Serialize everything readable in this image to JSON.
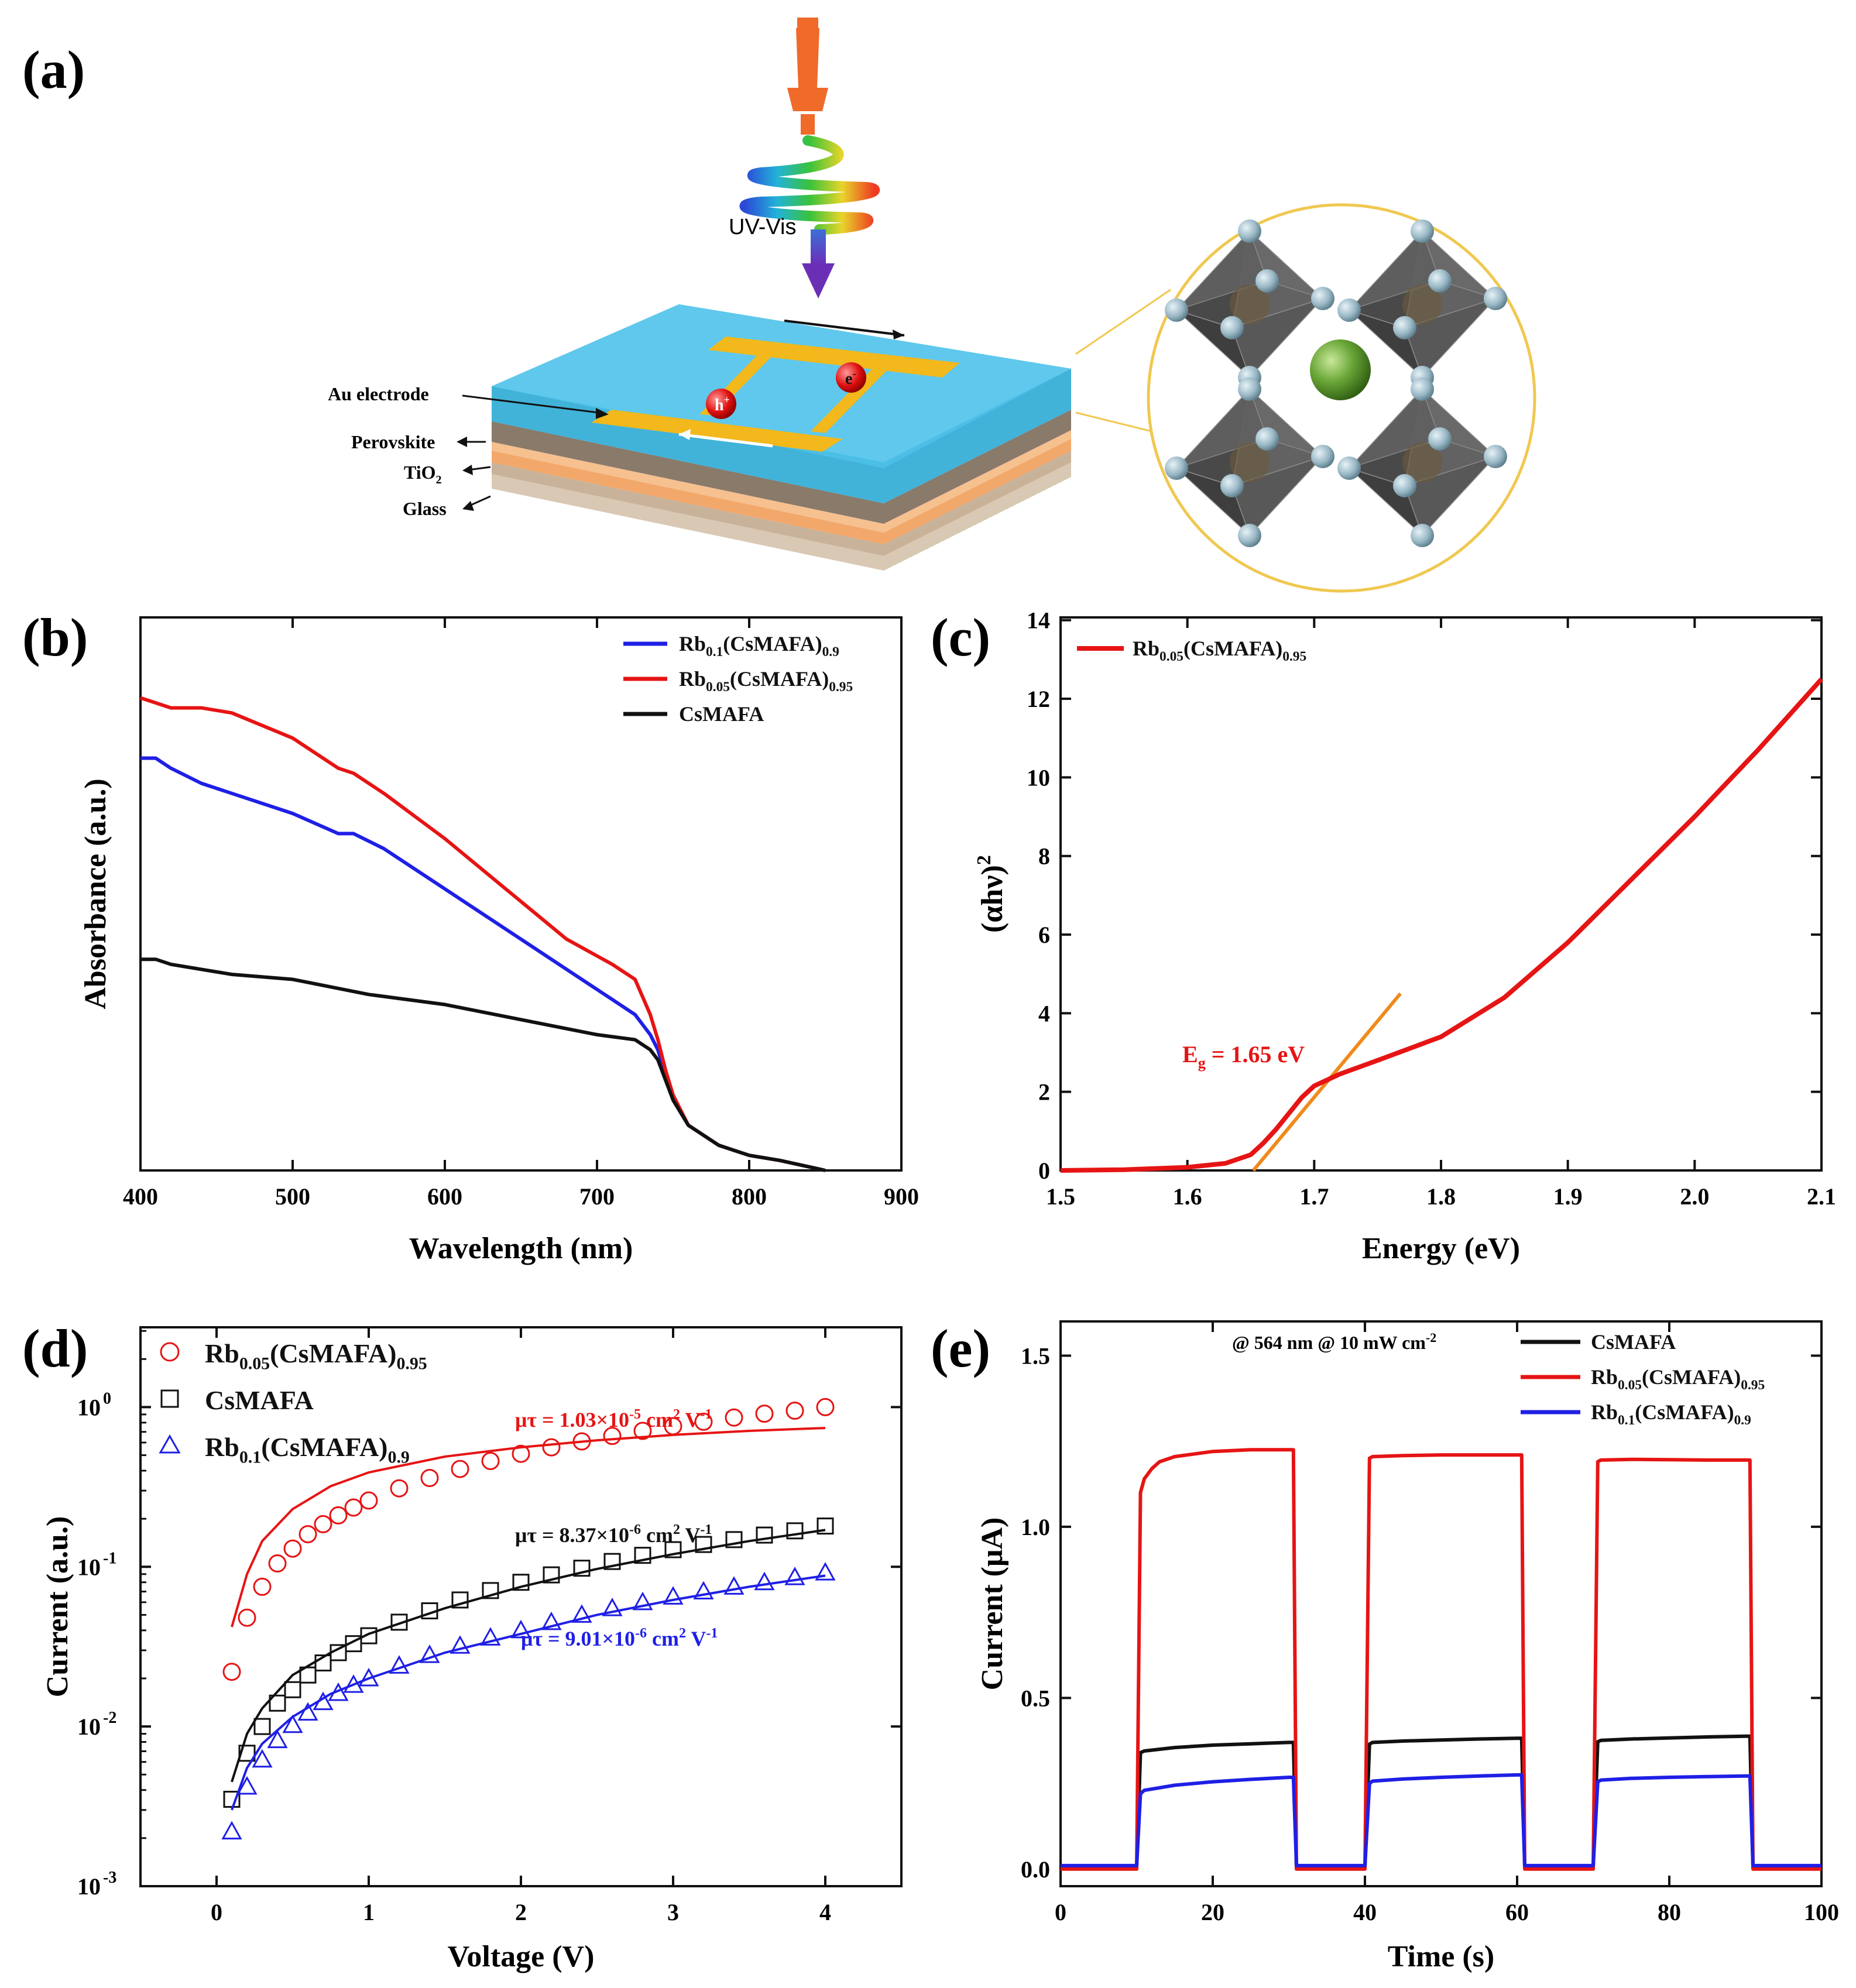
{
  "panel_a": {
    "label": "(a)",
    "uv_label": "UV-Vis",
    "layer_labels": [
      "Au electrode",
      "Perovskite",
      "TiO",
      "Glass"
    ],
    "tio2_sub": "2",
    "hole_label": "h",
    "hole_sup": "+",
    "electron_label": "e",
    "electron_sup": "-",
    "colors": {
      "perovskite": "#4bbfe6",
      "electrode": "#f2b81c",
      "lamp": "#f06a2a",
      "tio2": "#f2a86a",
      "glass": "#d9c8b4",
      "cation": "#6aa637",
      "anion": "#9ab8c6",
      "octahedron": "#4a4a4a"
    }
  },
  "chart_data": [
    {
      "panel": "(b)",
      "type": "line",
      "xlabel": "Wavelength (nm)",
      "ylabel": "Absorbance (a.u.)",
      "xlim": [
        400,
        900
      ],
      "ylim": [
        0,
        1.1
      ],
      "xticks": [
        400,
        500,
        600,
        700,
        800,
        900
      ],
      "yticks": [],
      "legend_position": "top-right",
      "series": [
        {
          "name": "Rb",
          "sub": "0.1",
          "suffix": "(CsMAFA)",
          "sub2": "0.9",
          "color": "#1f1fe6",
          "x": [
            400,
            410,
            420,
            440,
            460,
            500,
            530,
            540,
            560,
            600,
            640,
            680,
            710,
            725,
            735,
            740,
            745,
            750,
            760,
            780,
            800,
            820,
            850
          ],
          "y": [
            0.82,
            0.82,
            0.8,
            0.77,
            0.75,
            0.71,
            0.67,
            0.67,
            0.64,
            0.56,
            0.48,
            0.4,
            0.34,
            0.31,
            0.27,
            0.24,
            0.19,
            0.14,
            0.09,
            0.05,
            0.03,
            0.02,
            0.0
          ]
        },
        {
          "name": "Rb",
          "sub": "0.05",
          "suffix": "(CsMAFA)",
          "sub2": "0.95",
          "color": "#e61414",
          "x": [
            400,
            410,
            420,
            440,
            460,
            500,
            530,
            540,
            560,
            600,
            640,
            680,
            710,
            725,
            735,
            740,
            745,
            750,
            760,
            780,
            800,
            820,
            850
          ],
          "y": [
            0.94,
            0.93,
            0.92,
            0.92,
            0.91,
            0.86,
            0.8,
            0.79,
            0.75,
            0.66,
            0.56,
            0.46,
            0.41,
            0.38,
            0.31,
            0.26,
            0.2,
            0.15,
            0.09,
            0.05,
            0.03,
            0.02,
            0.0
          ]
        },
        {
          "name": "CsMAFA",
          "sub": "",
          "suffix": "",
          "sub2": "",
          "color": "#111111",
          "x": [
            400,
            410,
            420,
            440,
            460,
            500,
            550,
            600,
            650,
            700,
            725,
            735,
            740,
            745,
            750,
            760,
            780,
            800,
            820,
            850
          ],
          "y": [
            0.42,
            0.42,
            0.41,
            0.4,
            0.39,
            0.38,
            0.35,
            0.33,
            0.3,
            0.27,
            0.26,
            0.24,
            0.22,
            0.18,
            0.14,
            0.09,
            0.05,
            0.03,
            0.02,
            0.0
          ]
        }
      ]
    },
    {
      "panel": "(c)",
      "type": "line",
      "xlabel": "Energy (eV)",
      "ylabel_main": "(αhν)",
      "ylabel_sup": "2",
      "xlim": [
        1.5,
        2.1
      ],
      "ylim": [
        0,
        14
      ],
      "xticks": [
        1.5,
        1.6,
        1.7,
        1.8,
        1.9,
        2.0,
        2.1
      ],
      "yticks": [
        0,
        2,
        4,
        6,
        8,
        10,
        12,
        14
      ],
      "legend_position": "top-left",
      "annotation": {
        "main": "E",
        "sub": "g",
        "rest": " = 1.65 eV"
      },
      "fit_line": {
        "x": [
          1.652,
          1.768
        ],
        "y": [
          0,
          4.5
        ],
        "color": "#f08a1c"
      },
      "series": [
        {
          "name": "Rb",
          "sub": "0.05",
          "suffix": "(CsMAFA)",
          "sub2": "0.95",
          "color": "#e61414",
          "x": [
            1.5,
            1.55,
            1.6,
            1.63,
            1.65,
            1.66,
            1.67,
            1.68,
            1.69,
            1.7,
            1.72,
            1.75,
            1.8,
            1.85,
            1.9,
            1.95,
            2.0,
            2.05,
            2.1
          ],
          "y": [
            0.0,
            0.02,
            0.08,
            0.18,
            0.4,
            0.7,
            1.05,
            1.45,
            1.85,
            2.15,
            2.45,
            2.8,
            3.4,
            4.4,
            5.8,
            7.4,
            9.0,
            10.7,
            12.5
          ]
        }
      ]
    },
    {
      "panel": "(d)",
      "type": "scatter",
      "xlabel": "Voltage (V)",
      "ylabel": "Current (a.u.)",
      "xlim": [
        -0.5,
        4.5
      ],
      "ylim_log10": [
        -3,
        0.5
      ],
      "xticks": [
        0,
        1,
        2,
        3,
        4
      ],
      "yticks": [
        {
          "base": "10",
          "exp": "-3"
        },
        {
          "base": "10",
          "exp": "-2"
        },
        {
          "base": "10",
          "exp": "-1"
        },
        {
          "base": "10",
          "exp": "0"
        }
      ],
      "legend_position": "top-left",
      "series": [
        {
          "name": "Rb",
          "sub": "0.05",
          "suffix": "(CsMAFA)",
          "sub2": "0.95",
          "color": "#e61414",
          "marker": "circle",
          "x": [
            0.1,
            0.2,
            0.3,
            0.4,
            0.5,
            0.6,
            0.7,
            0.8,
            0.9,
            1.0,
            1.2,
            1.4,
            1.6,
            1.8,
            2.0,
            2.2,
            2.4,
            2.6,
            2.8,
            3.0,
            3.2,
            3.4,
            3.6,
            3.8,
            4.0
          ],
          "y": [
            0.022,
            0.048,
            0.075,
            0.105,
            0.13,
            0.16,
            0.185,
            0.21,
            0.235,
            0.26,
            0.31,
            0.36,
            0.41,
            0.46,
            0.51,
            0.56,
            0.61,
            0.66,
            0.71,
            0.76,
            0.81,
            0.86,
            0.91,
            0.95,
            1.0
          ],
          "fit_x": [
            0.1,
            0.2,
            0.3,
            0.5,
            0.75,
            1.0,
            1.5,
            2.0,
            2.5,
            3.0,
            3.5,
            4.0
          ],
          "fit_y": [
            0.042,
            0.09,
            0.145,
            0.23,
            0.32,
            0.39,
            0.49,
            0.56,
            0.62,
            0.67,
            0.71,
            0.74
          ],
          "annotation": {
            "pre": "μτ = 1.03×10",
            "sup": "-5",
            "mid": " cm",
            "sup2": "2",
            "post": " V",
            "sup3": "-1"
          }
        },
        {
          "name": "CsMAFA",
          "sub": "",
          "suffix": "",
          "sub2": "",
          "color": "#111111",
          "marker": "square",
          "x": [
            0.1,
            0.2,
            0.3,
            0.4,
            0.5,
            0.6,
            0.7,
            0.8,
            0.9,
            1.0,
            1.2,
            1.4,
            1.6,
            1.8,
            2.0,
            2.2,
            2.4,
            2.6,
            2.8,
            3.0,
            3.2,
            3.4,
            3.6,
            3.8,
            4.0
          ],
          "y": [
            0.0035,
            0.0068,
            0.01,
            0.014,
            0.017,
            0.021,
            0.025,
            0.029,
            0.033,
            0.037,
            0.045,
            0.053,
            0.062,
            0.071,
            0.08,
            0.089,
            0.098,
            0.108,
            0.118,
            0.128,
            0.138,
            0.148,
            0.158,
            0.168,
            0.18
          ],
          "fit_x": [
            0.1,
            0.2,
            0.3,
            0.5,
            0.75,
            1.0,
            1.5,
            2.0,
            2.5,
            3.0,
            3.5,
            4.0
          ],
          "fit_y": [
            0.0045,
            0.009,
            0.013,
            0.021,
            0.029,
            0.038,
            0.055,
            0.075,
            0.097,
            0.12,
            0.145,
            0.17
          ],
          "annotation": {
            "pre": "μτ = 8.37×10",
            "sup": "-6",
            "mid": " cm",
            "sup2": "2",
            "post": " V",
            "sup3": "-1"
          }
        },
        {
          "name": "Rb",
          "sub": "0.1",
          "suffix": "(CsMAFA)",
          "sub2": "0.9",
          "color": "#1f1fe6",
          "marker": "triangle",
          "x": [
            0.1,
            0.2,
            0.3,
            0.4,
            0.5,
            0.6,
            0.7,
            0.8,
            0.9,
            1.0,
            1.2,
            1.4,
            1.6,
            1.8,
            2.0,
            2.2,
            2.4,
            2.6,
            2.8,
            3.0,
            3.2,
            3.4,
            3.6,
            3.8,
            4.0
          ],
          "y": [
            0.0022,
            0.0042,
            0.0062,
            0.0082,
            0.0102,
            0.0122,
            0.0142,
            0.0162,
            0.0182,
            0.02,
            0.024,
            0.028,
            0.032,
            0.036,
            0.04,
            0.045,
            0.05,
            0.055,
            0.06,
            0.065,
            0.07,
            0.075,
            0.08,
            0.086,
            0.092
          ],
          "fit_x": [
            0.1,
            0.2,
            0.3,
            0.5,
            0.75,
            1.0,
            1.5,
            2.0,
            2.5,
            3.0,
            3.5,
            4.0
          ],
          "fit_y": [
            0.003,
            0.0055,
            0.0078,
            0.0115,
            0.016,
            0.02,
            0.029,
            0.038,
            0.05,
            0.062,
            0.075,
            0.088
          ],
          "annotation": {
            "pre": "μτ = 9.01×10",
            "sup": "-6",
            "mid": " cm",
            "sup2": "2",
            "post": " V",
            "sup3": "-1"
          }
        }
      ]
    },
    {
      "panel": "(e)",
      "type": "line",
      "xlabel": "Time (s)",
      "ylabel": "Current (μA)",
      "xlim": [
        0,
        100
      ],
      "ylim": [
        -0.05,
        1.6
      ],
      "xticks": [
        0,
        20,
        40,
        60,
        80,
        100
      ],
      "yticks": [
        0.0,
        0.5,
        1.0,
        1.5
      ],
      "legend_position": "top-right",
      "condition": {
        "pre": "@ 564 nm @ 10 mW cm",
        "sup": "-2"
      },
      "series": [
        {
          "name": "CsMAFA",
          "sub": "",
          "suffix": "",
          "sub2": "",
          "color": "#111111",
          "x": [
            0,
            10,
            10.5,
            11,
            15,
            20,
            25,
            30,
            30.6,
            31,
            40,
            40.6,
            41,
            45,
            50,
            55,
            60,
            60.6,
            61,
            70,
            70.6,
            71,
            75,
            80,
            85,
            90,
            90.6,
            91,
            100
          ],
          "y": [
            0.005,
            0.005,
            0.34,
            0.345,
            0.355,
            0.362,
            0.366,
            0.37,
            0.37,
            0.005,
            0.005,
            0.365,
            0.37,
            0.374,
            0.377,
            0.38,
            0.382,
            0.382,
            0.005,
            0.005,
            0.372,
            0.376,
            0.38,
            0.383,
            0.386,
            0.388,
            0.388,
            0.005,
            0.005
          ]
        },
        {
          "name": "Rb",
          "sub": "0.05",
          "suffix": "(CsMAFA)",
          "sub2": "0.95",
          "color": "#e61414",
          "x": [
            0,
            10,
            10.5,
            11,
            12,
            13,
            15,
            20,
            25,
            30,
            30.6,
            31,
            40,
            40.6,
            41,
            45,
            50,
            55,
            60,
            60.6,
            61,
            70,
            70.6,
            71,
            75,
            80,
            85,
            90,
            90.6,
            91,
            100
          ],
          "y": [
            0.0,
            0.0,
            1.1,
            1.14,
            1.17,
            1.19,
            1.205,
            1.22,
            1.225,
            1.225,
            1.225,
            0.0,
            0.0,
            1.2,
            1.205,
            1.208,
            1.21,
            1.21,
            1.21,
            1.21,
            0.0,
            0.0,
            1.19,
            1.195,
            1.197,
            1.196,
            1.195,
            1.195,
            1.195,
            0.0,
            0.0
          ]
        },
        {
          "name": "Rb",
          "sub": "0.1",
          "suffix": "(CsMAFA)",
          "sub2": "0.9",
          "color": "#1f1fe6",
          "x": [
            0,
            10,
            10.5,
            11,
            15,
            20,
            25,
            30,
            30.6,
            31,
            40,
            40.6,
            41,
            45,
            50,
            55,
            60,
            60.6,
            61,
            70,
            70.6,
            71,
            75,
            80,
            85,
            90,
            90.6,
            91,
            100
          ],
          "y": [
            0.01,
            0.01,
            0.22,
            0.23,
            0.245,
            0.255,
            0.262,
            0.268,
            0.268,
            0.01,
            0.01,
            0.25,
            0.257,
            0.263,
            0.268,
            0.272,
            0.275,
            0.275,
            0.01,
            0.01,
            0.255,
            0.26,
            0.265,
            0.268,
            0.27,
            0.272,
            0.272,
            0.01,
            0.01
          ]
        }
      ]
    }
  ]
}
